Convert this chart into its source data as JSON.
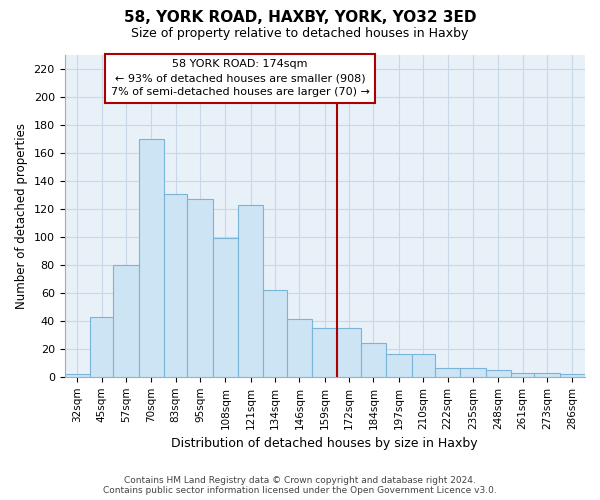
{
  "title": "58, YORK ROAD, HAXBY, YORK, YO32 3ED",
  "subtitle": "Size of property relative to detached houses in Haxby",
  "xlabel": "Distribution of detached houses by size in Haxby",
  "ylabel": "Number of detached properties",
  "footer_lines": [
    "Contains HM Land Registry data © Crown copyright and database right 2024.",
    "Contains public sector information licensed under the Open Government Licence v3.0."
  ],
  "bin_labels": [
    "32sqm",
    "45sqm",
    "57sqm",
    "70sqm",
    "83sqm",
    "95sqm",
    "108sqm",
    "121sqm",
    "134sqm",
    "146sqm",
    "159sqm",
    "172sqm",
    "184sqm",
    "197sqm",
    "210sqm",
    "222sqm",
    "235sqm",
    "248sqm",
    "261sqm",
    "273sqm",
    "286sqm"
  ],
  "bar_values": [
    2,
    43,
    80,
    170,
    131,
    127,
    99,
    123,
    62,
    41,
    35,
    35,
    24,
    16,
    16,
    6,
    6,
    5,
    3,
    3,
    2
  ],
  "bar_color": "#cce4f4",
  "bar_edge_color": "#7ab4d8",
  "grid_color": "#c8d8e8",
  "bg_color": "#e8f0f8",
  "ylim": [
    0,
    230
  ],
  "yticks": [
    0,
    20,
    40,
    60,
    80,
    100,
    120,
    140,
    160,
    180,
    200,
    220
  ],
  "property_label": "58 YORK ROAD: 174sqm",
  "annotation_line1": "← 93% of detached houses are smaller (908)",
  "annotation_line2": "7% of semi-detached houses are larger (70) →",
  "vline_color": "#aa0000",
  "annotation_box_edge": "#aa0000",
  "bin_edges": [
    32,
    45,
    57,
    70,
    83,
    95,
    108,
    121,
    134,
    146,
    159,
    172,
    184,
    197,
    210,
    222,
    235,
    248,
    261,
    273,
    286
  ],
  "vline_x": 172
}
